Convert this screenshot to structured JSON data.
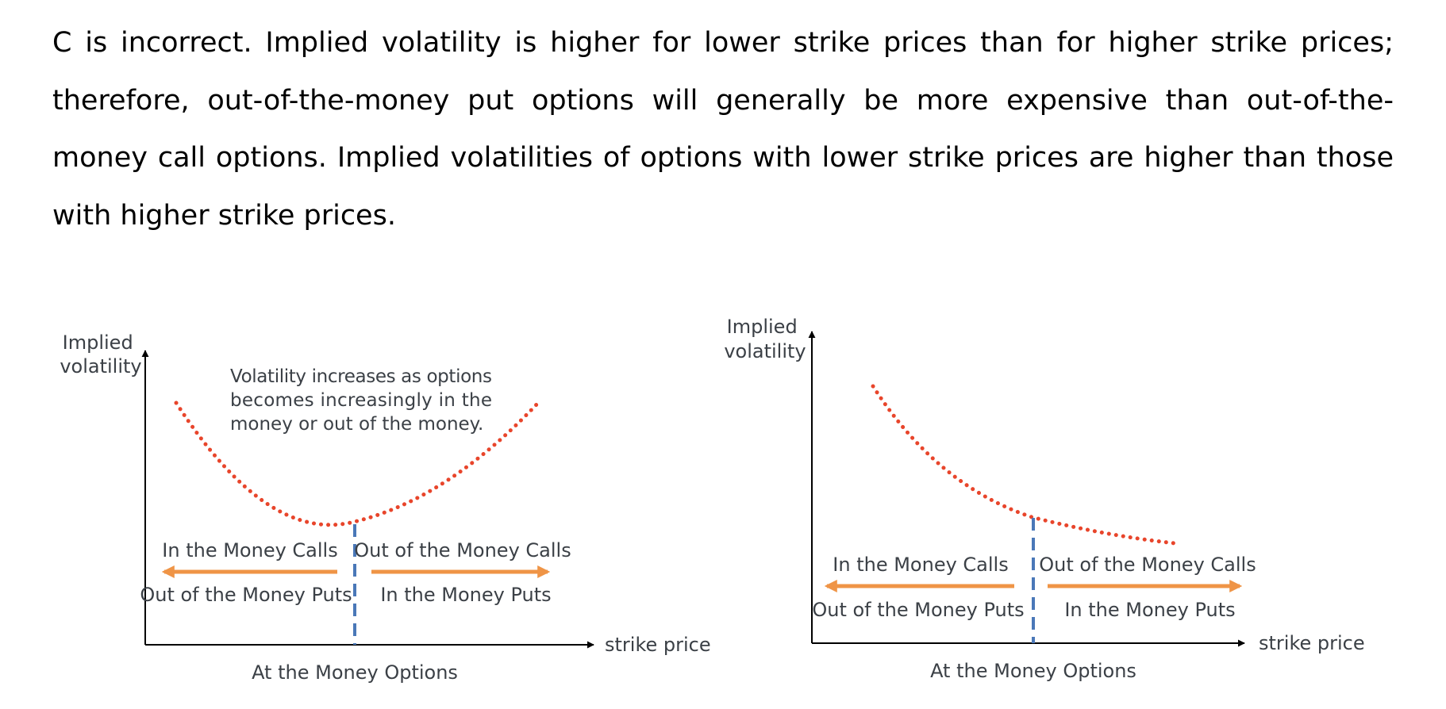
{
  "explanation": "C is incorrect. Implied volatility is higher for lower strike prices than for higher strike prices; therefore, out-of-the-money put options will generally be more expensive than out-of-the-money call options. Implied volatilities of options with lower strike prices are higher than those with higher strike prices.",
  "colors": {
    "curve": "#e8452b",
    "arrow": "#ef9446",
    "atm_line": "#4a78b8",
    "axis": "#000000",
    "label": "#3b4046"
  },
  "smile_chart": {
    "y_axis_label_line1": "Implied",
    "y_axis_label_line2": "volatility",
    "x_axis_label": "strike price",
    "annotation_line1": "Volatility increases as options",
    "annotation_line2": "becomes increasingly in the",
    "annotation_line3": "money or out of the money.",
    "left_top_label": "In the Money Calls",
    "left_bottom_label": "Out of the Money Puts",
    "right_top_label": "Out of the Money Calls",
    "right_bottom_label": "In the Money Puts",
    "atm_label": "At the Money Options"
  },
  "skew_chart": {
    "y_axis_label_line1": "Implied",
    "y_axis_label_line2": "volatility",
    "x_axis_label": "strike price",
    "left_top_label": "In the Money Calls",
    "left_bottom_label": "Out of the Money Puts",
    "right_top_label": "Out of the Money Calls",
    "right_bottom_label": "In the Money Puts",
    "atm_label": "At the Money Options"
  }
}
